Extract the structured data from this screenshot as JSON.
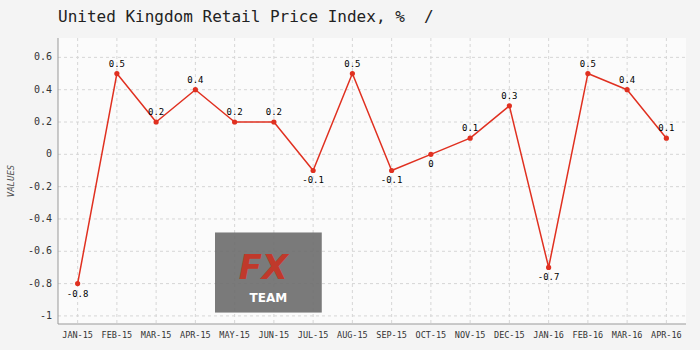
{
  "chart_data": {
    "type": "line",
    "title": "United Kingdom Retail Price Index, %  /",
    "ylabel": "VALUES",
    "categories": [
      "JAN-15",
      "FEB-15",
      "MAR-15",
      "APR-15",
      "MAY-15",
      "JUN-15",
      "JUL-15",
      "AUG-15",
      "SEP-15",
      "OCT-15",
      "NOV-15",
      "DEC-15",
      "JAN-16",
      "FEB-16",
      "MAR-16",
      "APR-16"
    ],
    "values": [
      -0.8,
      0.5,
      0.2,
      0.4,
      0.2,
      0.2,
      -0.1,
      0.5,
      -0.1,
      0.0,
      0.1,
      0.3,
      -0.7,
      0.5,
      0.4,
      0.1
    ],
    "color": "#e03020",
    "marker": "circle",
    "ylim": [
      -1.05,
      0.72
    ],
    "yticks": [
      -1,
      -0.8,
      -0.6,
      -0.4,
      -0.2,
      0,
      0.2,
      0.4,
      0.6
    ],
    "grid": true,
    "data_labels": true,
    "annotations": [
      "FX",
      "TEAM"
    ]
  }
}
